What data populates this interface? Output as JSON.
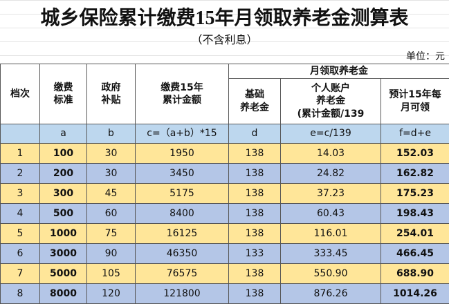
{
  "title": "城乡保险累计缴费15年月领取养老金测算表",
  "subtitle": "（不含利息）",
  "unit": "单位：元",
  "table": {
    "group_header": "月领取养老金",
    "headers": [
      "档次",
      "缴费\n标准",
      "政府\n补贴",
      "缴费15年\n累计金额",
      "基础\n养老金",
      "个人账户\n养老金\n(累计金额/139",
      "预计15年每\n月可领"
    ],
    "formulas": [
      "a",
      "b",
      "c=（a+b）*15",
      "d",
      "e=c/139",
      "f=d+e"
    ],
    "rows": [
      [
        "1",
        "100",
        "30",
        "1950",
        "138",
        "14.03",
        "152.03"
      ],
      [
        "2",
        "200",
        "30",
        "3450",
        "138",
        "24.82",
        "162.82"
      ],
      [
        "3",
        "300",
        "45",
        "5175",
        "138",
        "37.23",
        "175.23"
      ],
      [
        "4",
        "500",
        "60",
        "8400",
        "138",
        "60.43",
        "198.43"
      ],
      [
        "5",
        "1000",
        "75",
        "16125",
        "138",
        "116.01",
        "254.01"
      ],
      [
        "6",
        "3000",
        "90",
        "46350",
        "133",
        "333.45",
        "466.45"
      ],
      [
        "7",
        "5000",
        "105",
        "76575",
        "138",
        "550.90",
        "688.90"
      ],
      [
        "8",
        "8000",
        "120",
        "121800",
        "138",
        "876.26",
        "1014.26"
      ]
    ]
  }
}
